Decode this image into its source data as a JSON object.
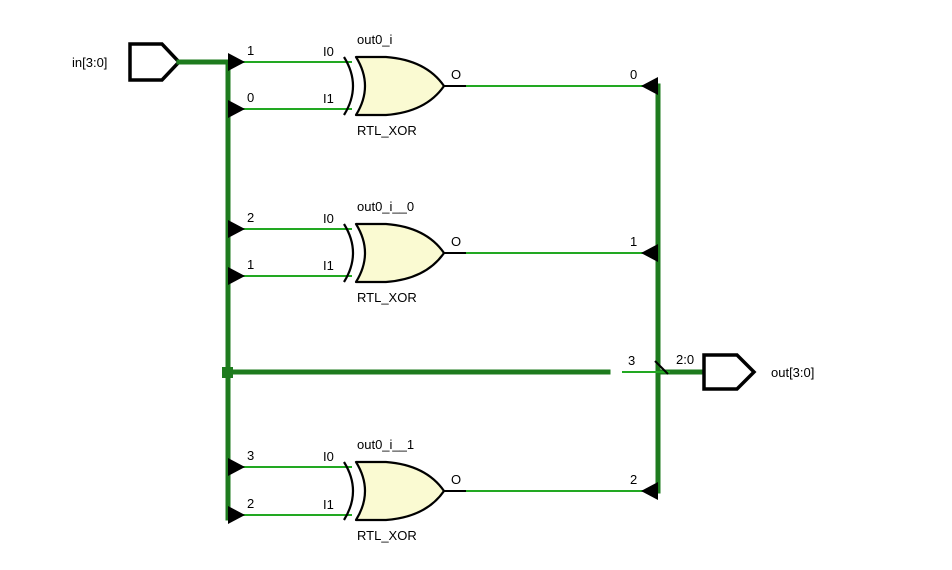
{
  "colors": {
    "bus": "#1e7b1e",
    "wire": "#22a822",
    "gate_fill": "#fafad2",
    "marker": "#000000"
  },
  "ports": {
    "input": {
      "label": "in[3:0]",
      "icon": "input-port-pentagon-icon"
    },
    "output": {
      "label": "out[3:0]",
      "range": "2:0",
      "icon": "output-port-pentagon-icon"
    }
  },
  "gates": [
    {
      "instance": "out0_i",
      "type": "RTL_XOR",
      "pin_i0": "I0",
      "pin_i1": "I1",
      "pin_o": "O",
      "in_bit_i0": "1",
      "in_bit_i1": "0",
      "out_bit": "0"
    },
    {
      "instance": "out0_i__0",
      "type": "RTL_XOR",
      "pin_i0": "I0",
      "pin_i1": "I1",
      "pin_o": "O",
      "in_bit_i0": "2",
      "in_bit_i1": "1",
      "out_bit": "1"
    },
    {
      "instance": "out0_i__1",
      "type": "RTL_XOR",
      "pin_i0": "I0",
      "pin_i1": "I1",
      "pin_o": "O",
      "in_bit_i0": "3",
      "in_bit_i1": "2",
      "out_bit": "2"
    }
  ],
  "passthrough": {
    "bit": "3"
  }
}
